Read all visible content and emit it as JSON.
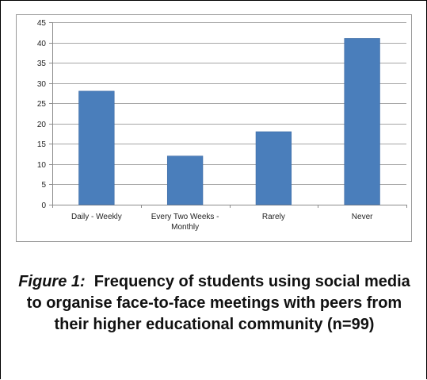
{
  "caption": {
    "label": "Figure 1:",
    "text": "Frequency of students using social media to organise face-to-face meetings with peers from their higher educational community (n=99)"
  },
  "colors": {
    "bar": "#4a7ebb",
    "bar_edge": "#3c6aa3",
    "grid": "#a6a6a6",
    "axis": "#8c8c8c"
  },
  "chart_data": {
    "type": "bar",
    "categories": [
      [
        "Daily - Weekly"
      ],
      [
        "Every Two Weeks -",
        "Monthly"
      ],
      [
        "Rarely"
      ],
      [
        "Never"
      ]
    ],
    "values": [
      28,
      12,
      18,
      41
    ],
    "ylim": [
      0,
      45
    ],
    "yticks": [
      0,
      5,
      10,
      15,
      20,
      25,
      30,
      35,
      40,
      45
    ],
    "grid": true,
    "title": "",
    "xlabel": "",
    "ylabel": ""
  }
}
